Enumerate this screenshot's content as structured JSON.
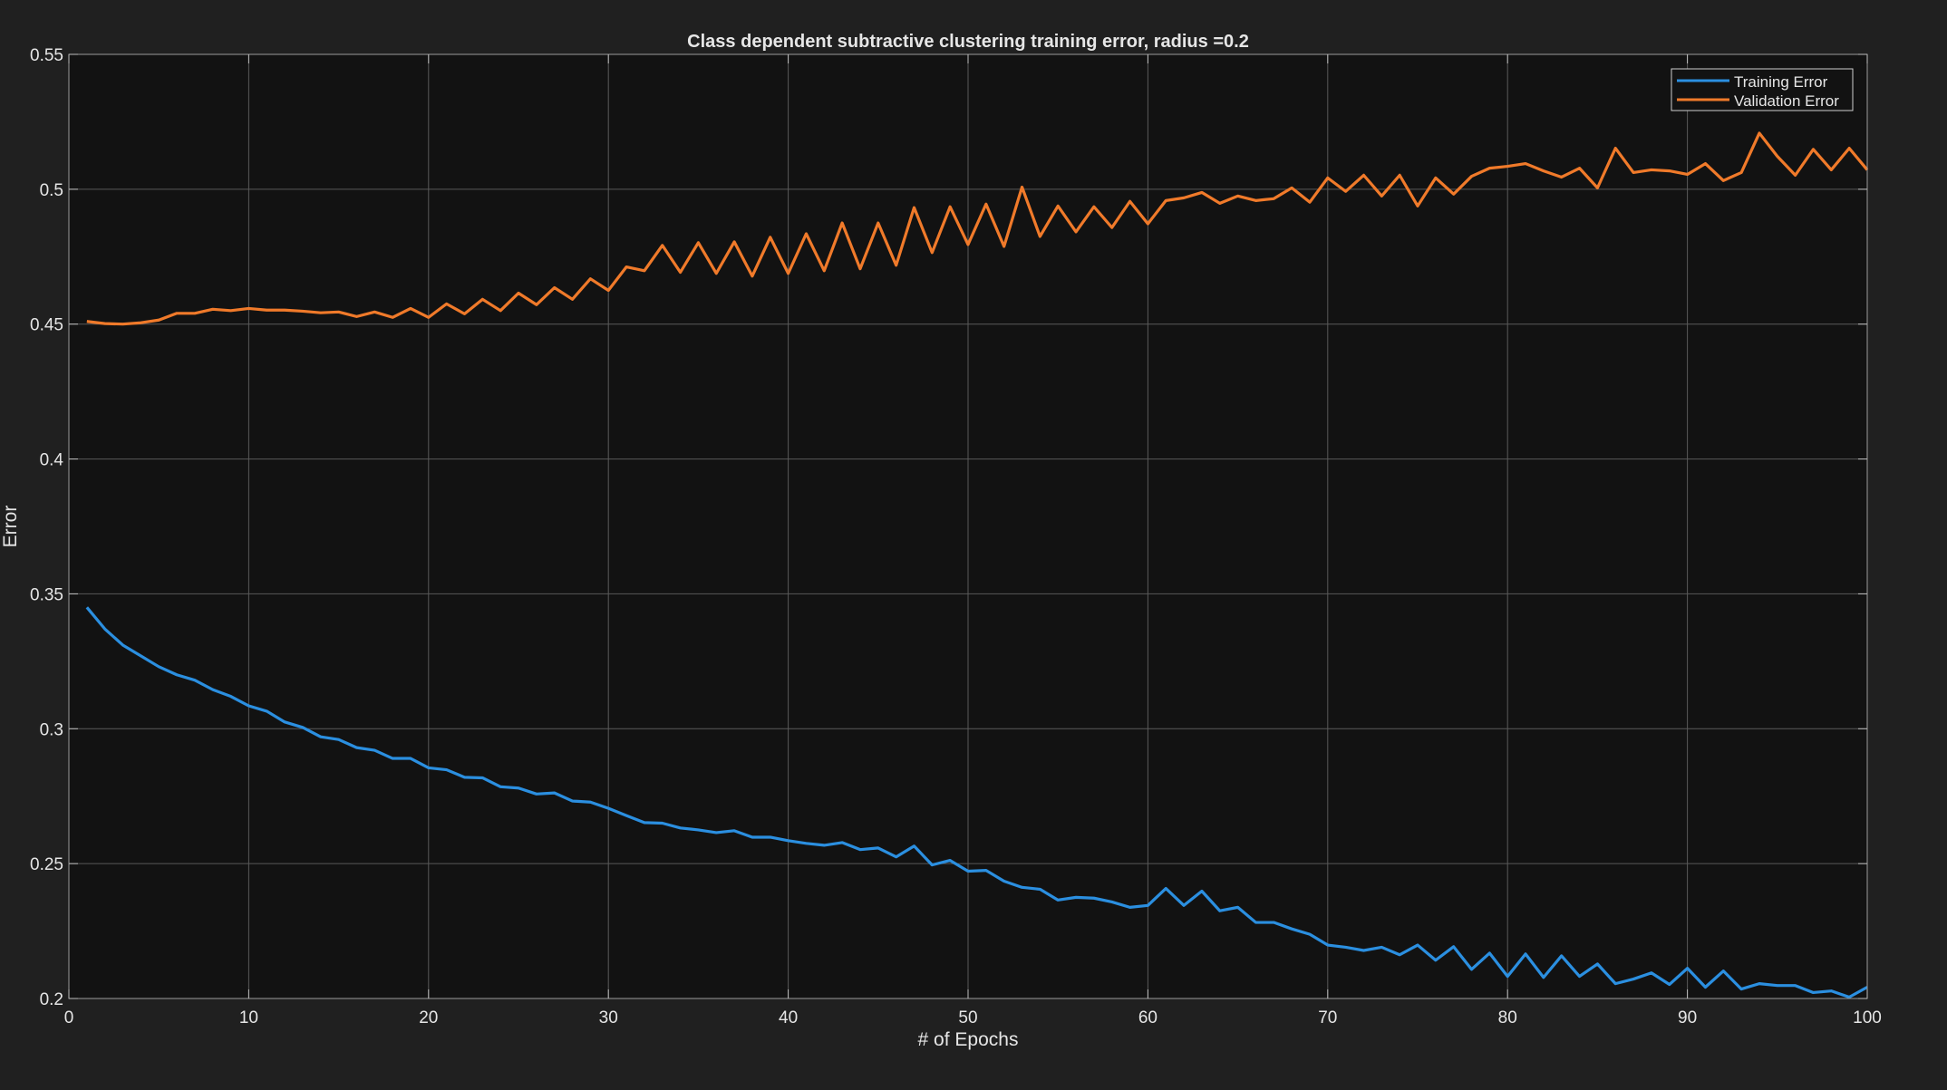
{
  "chart_data": {
    "type": "line",
    "title": "Class dependent subtractive clustering training error, radius =0.2",
    "xlabel": "# of Epochs",
    "ylabel": "Error",
    "xlim": [
      0,
      100
    ],
    "ylim": [
      0.2,
      0.55
    ],
    "xticks": [
      0,
      10,
      20,
      30,
      40,
      50,
      60,
      70,
      80,
      90,
      100
    ],
    "yticks": [
      0.2,
      0.25,
      0.3,
      0.35,
      0.4,
      0.45,
      0.5,
      0.55
    ],
    "xtick_labels": [
      "0",
      "10",
      "20",
      "30",
      "40",
      "50",
      "60",
      "70",
      "80",
      "90",
      "100"
    ],
    "ytick_labels": [
      "0.2",
      "0.25",
      "0.3",
      "0.35",
      "0.4",
      "0.45",
      "0.5",
      "0.55"
    ],
    "grid": true,
    "legend_position": "top-right",
    "colors": {
      "figure_background": "#202020",
      "axes_background": "#121212",
      "grid": "#5a5a5a",
      "text": "#e6e6e6"
    },
    "x": [
      1,
      2,
      3,
      4,
      5,
      6,
      7,
      8,
      9,
      10,
      11,
      12,
      13,
      14,
      15,
      16,
      17,
      18,
      19,
      20,
      21,
      22,
      23,
      24,
      25,
      26,
      27,
      28,
      29,
      30,
      31,
      32,
      33,
      34,
      35,
      36,
      37,
      38,
      39,
      40,
      41,
      42,
      43,
      44,
      45,
      46,
      47,
      48,
      49,
      50,
      51,
      52,
      53,
      54,
      55,
      56,
      57,
      58,
      59,
      60,
      61,
      62,
      63,
      64,
      65,
      66,
      67,
      68,
      69,
      70,
      71,
      72,
      73,
      74,
      75,
      76,
      77,
      78,
      79,
      80,
      81,
      82,
      83,
      84,
      85,
      86,
      87,
      88,
      89,
      90,
      91,
      92,
      93,
      94,
      95,
      96,
      97,
      98,
      99,
      100
    ],
    "series": [
      {
        "name": "Training Error",
        "color": "#2b8fe0",
        "values": [
          0.345,
          0.337,
          0.331,
          0.327,
          0.323,
          0.32,
          0.318,
          0.3145,
          0.312,
          0.3085,
          0.3065,
          0.3025,
          0.3005,
          0.297,
          0.296,
          0.293,
          0.292,
          0.289,
          0.289,
          0.2855,
          0.2848,
          0.282,
          0.2818,
          0.2785,
          0.278,
          0.2758,
          0.2762,
          0.2732,
          0.2728,
          0.2705,
          0.2678,
          0.2652,
          0.265,
          0.2632,
          0.2625,
          0.2615,
          0.2622,
          0.2598,
          0.2598,
          0.2585,
          0.2575,
          0.2568,
          0.2578,
          0.2552,
          0.2558,
          0.2525,
          0.2565,
          0.2495,
          0.2512,
          0.2472,
          0.2475,
          0.2435,
          0.2412,
          0.2405,
          0.2365,
          0.2375,
          0.2372,
          0.2358,
          0.2338,
          0.2345,
          0.2408,
          0.2345,
          0.2398,
          0.2325,
          0.2338,
          0.2282,
          0.2282,
          0.2258,
          0.2238,
          0.2198,
          0.219,
          0.2178,
          0.219,
          0.2162,
          0.2198,
          0.2142,
          0.2192,
          0.2108,
          0.2168,
          0.2082,
          0.2165,
          0.2078,
          0.2158,
          0.2082,
          0.2128,
          0.2055,
          0.2072,
          0.2095,
          0.2052,
          0.2112,
          0.2042,
          0.2102,
          0.2035,
          0.2055,
          0.2048,
          0.2048,
          0.2022,
          0.2028,
          0.2005,
          0.2042
        ]
      },
      {
        "name": "Validation Error",
        "color": "#f07a2a",
        "values": [
          0.451,
          0.4502,
          0.45,
          0.4505,
          0.4515,
          0.454,
          0.454,
          0.4555,
          0.455,
          0.4558,
          0.4552,
          0.4552,
          0.4548,
          0.4542,
          0.4545,
          0.4528,
          0.4545,
          0.4525,
          0.4558,
          0.4525,
          0.4575,
          0.4538,
          0.4592,
          0.455,
          0.4615,
          0.4572,
          0.4635,
          0.4592,
          0.4668,
          0.4625,
          0.4712,
          0.4698,
          0.4792,
          0.4692,
          0.4802,
          0.4688,
          0.4805,
          0.4678,
          0.4822,
          0.4688,
          0.4835,
          0.4698,
          0.4875,
          0.4705,
          0.4875,
          0.4718,
          0.4932,
          0.4765,
          0.4935,
          0.4795,
          0.4945,
          0.4788,
          0.5008,
          0.4825,
          0.4938,
          0.4842,
          0.4935,
          0.4858,
          0.4955,
          0.4872,
          0.4958,
          0.4968,
          0.4988,
          0.4948,
          0.4975,
          0.4958,
          0.4965,
          0.5005,
          0.4952,
          0.5042,
          0.4992,
          0.5052,
          0.4975,
          0.5052,
          0.4938,
          0.5042,
          0.4982,
          0.5048,
          0.5078,
          0.5085,
          0.5095,
          0.5068,
          0.5045,
          0.5078,
          0.5005,
          0.5152,
          0.5062,
          0.5072,
          0.5068,
          0.5055,
          0.5095,
          0.5032,
          0.5062,
          0.5208,
          0.5122,
          0.5052,
          0.5148,
          0.5072,
          0.5152,
          0.5072
        ]
      }
    ]
  }
}
